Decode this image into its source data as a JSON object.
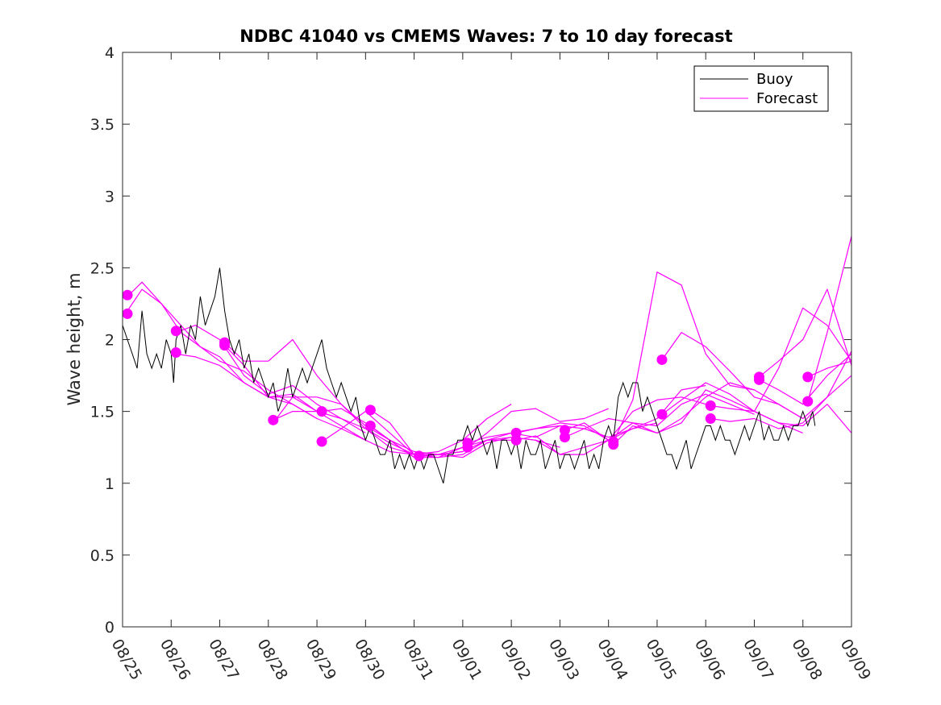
{
  "chart_data": {
    "type": "line",
    "title": "NDBC 41040 vs CMEMS Waves: 7 to 10 day forecast",
    "xlabel": "",
    "ylabel": "Wave height, m",
    "ylim": [
      0,
      4
    ],
    "yticks": [
      0,
      0.5,
      1,
      1.5,
      2,
      2.5,
      3,
      3.5,
      4
    ],
    "ytick_labels": [
      "0",
      "0.5",
      "1",
      "1.5",
      "2",
      "2.5",
      "3",
      "3.5",
      "4"
    ],
    "xlim": [
      0,
      15
    ],
    "xtick_labels": [
      "08/25",
      "08/26",
      "08/27",
      "08/28",
      "08/29",
      "08/30",
      "08/31",
      "09/01",
      "09/02",
      "09/03",
      "09/04",
      "09/05",
      "09/06",
      "09/07",
      "09/08",
      "09/09"
    ],
    "legend": {
      "position": "top-right",
      "entries": [
        "Buoy",
        "Forecast"
      ]
    },
    "colors": {
      "buoy": "#000000",
      "forecast": "#ff00ff"
    },
    "series": [
      {
        "name": "Buoy",
        "x": [
          0,
          0.1,
          0.2,
          0.3,
          0.4,
          0.5,
          0.6,
          0.7,
          0.8,
          0.9,
          1.0,
          1.05,
          1.1,
          1.2,
          1.3,
          1.4,
          1.5,
          1.6,
          1.7,
          1.8,
          1.9,
          2.0,
          2.1,
          2.2,
          2.3,
          2.4,
          2.5,
          2.6,
          2.7,
          2.8,
          2.9,
          3.0,
          3.1,
          3.2,
          3.3,
          3.4,
          3.5,
          3.6,
          3.7,
          3.8,
          3.9,
          4.0,
          4.1,
          4.2,
          4.3,
          4.4,
          4.5,
          4.6,
          4.7,
          4.8,
          4.9,
          5.0,
          5.1,
          5.2,
          5.3,
          5.4,
          5.5,
          5.6,
          5.7,
          5.8,
          5.9,
          6.0,
          6.1,
          6.2,
          6.3,
          6.4,
          6.5,
          6.6,
          6.7,
          6.8,
          6.9,
          7.0,
          7.1,
          7.2,
          7.3,
          7.4,
          7.5,
          7.6,
          7.7,
          7.8,
          7.9,
          8.0,
          8.1,
          8.2,
          8.3,
          8.4,
          8.5,
          8.6,
          8.7,
          8.8,
          8.9,
          9.0,
          9.1,
          9.2,
          9.3,
          9.4,
          9.5,
          9.6,
          9.7,
          9.8,
          9.9,
          10.0,
          10.1,
          10.2,
          10.3,
          10.4,
          10.5,
          10.6,
          10.7,
          10.8,
          10.9,
          11.0,
          11.1,
          11.2,
          11.3,
          11.4,
          11.5,
          11.6,
          11.7,
          11.8,
          11.9,
          12.0,
          12.1,
          12.2,
          12.3,
          12.4,
          12.5,
          12.6,
          12.7,
          12.8,
          12.9,
          13.0,
          13.1,
          13.2,
          13.3,
          13.4,
          13.5,
          13.6,
          13.7,
          13.8,
          13.9,
          14.0,
          14.1,
          14.2,
          14.25
        ],
        "values": [
          2.1,
          2.0,
          1.9,
          1.8,
          2.2,
          1.9,
          1.8,
          1.9,
          1.8,
          2.0,
          1.9,
          1.7,
          2.0,
          2.1,
          1.9,
          2.1,
          2.0,
          2.3,
          2.1,
          2.2,
          2.3,
          2.5,
          2.2,
          2.0,
          1.9,
          2.0,
          1.8,
          1.9,
          1.7,
          1.8,
          1.7,
          1.6,
          1.7,
          1.5,
          1.6,
          1.8,
          1.6,
          1.7,
          1.8,
          1.7,
          1.8,
          1.9,
          2.0,
          1.8,
          1.7,
          1.6,
          1.7,
          1.6,
          1.5,
          1.6,
          1.4,
          1.3,
          1.4,
          1.3,
          1.2,
          1.2,
          1.3,
          1.1,
          1.2,
          1.1,
          1.2,
          1.1,
          1.2,
          1.1,
          1.2,
          1.2,
          1.1,
          1.0,
          1.2,
          1.2,
          1.3,
          1.3,
          1.4,
          1.3,
          1.4,
          1.3,
          1.2,
          1.3,
          1.1,
          1.3,
          1.3,
          1.2,
          1.3,
          1.1,
          1.3,
          1.2,
          1.2,
          1.3,
          1.1,
          1.2,
          1.3,
          1.1,
          1.2,
          1.2,
          1.1,
          1.2,
          1.3,
          1.1,
          1.2,
          1.1,
          1.3,
          1.4,
          1.3,
          1.6,
          1.7,
          1.6,
          1.7,
          1.7,
          1.5,
          1.6,
          1.5,
          1.4,
          1.3,
          1.2,
          1.2,
          1.1,
          1.2,
          1.3,
          1.1,
          1.2,
          1.3,
          1.4,
          1.4,
          1.3,
          1.4,
          1.3,
          1.3,
          1.2,
          1.3,
          1.4,
          1.3,
          1.4,
          1.5,
          1.3,
          1.4,
          1.3,
          1.3,
          1.4,
          1.3,
          1.4,
          1.4,
          1.5,
          1.4,
          1.5,
          1.4
        ]
      },
      {
        "name": "Forecast",
        "x": [
          0.1,
          0.4,
          0.8,
          1.2,
          1.6,
          2.0,
          2.5,
          3.0,
          3.5,
          4.0
        ],
        "values": [
          2.2,
          2.35,
          2.25,
          2.05,
          1.95,
          1.85,
          1.78,
          1.65,
          1.55,
          1.45
        ]
      },
      {
        "name": "Forecast",
        "x": [
          0.1,
          0.4,
          0.8,
          1.2,
          1.6,
          2.0,
          2.5,
          3.0,
          3.5,
          4.0
        ],
        "values": [
          2.3,
          2.4,
          2.25,
          2.1,
          1.95,
          1.88,
          1.7,
          1.6,
          1.6,
          1.5
        ]
      },
      {
        "name": "Forecast",
        "x": [
          1.1,
          1.5,
          2.0,
          2.5,
          3.0,
          3.5,
          4.0,
          4.5,
          5.0
        ],
        "values": [
          1.9,
          1.88,
          1.82,
          1.7,
          1.6,
          1.55,
          1.45,
          1.38,
          1.3
        ]
      },
      {
        "name": "Forecast",
        "x": [
          1.1,
          1.5,
          2.0,
          2.5,
          3.0,
          3.5,
          4.0,
          4.5,
          5.0
        ],
        "values": [
          2.05,
          2.1,
          2.0,
          1.75,
          1.62,
          1.68,
          1.55,
          1.45,
          1.35
        ]
      },
      {
        "name": "Forecast",
        "x": [
          2.1,
          2.5,
          3.0,
          3.5,
          4.0,
          4.5,
          5.0,
          5.5,
          6.0
        ],
        "values": [
          1.98,
          1.85,
          1.85,
          2.0,
          1.75,
          1.55,
          1.38,
          1.25,
          1.2
        ]
      },
      {
        "name": "Forecast",
        "x": [
          2.1,
          2.5,
          3.0,
          3.5,
          4.0,
          4.5,
          5.0,
          5.5,
          6.0
        ],
        "values": [
          1.96,
          1.82,
          1.6,
          1.62,
          1.5,
          1.4,
          1.3,
          1.22,
          1.2
        ]
      },
      {
        "name": "Forecast",
        "x": [
          3.1,
          3.5,
          4.0,
          4.5,
          5.0,
          5.5,
          6.0,
          6.5,
          7.0
        ],
        "values": [
          1.44,
          1.5,
          1.5,
          1.45,
          1.38,
          1.28,
          1.2,
          1.2,
          1.22
        ]
      },
      {
        "name": "Forecast",
        "x": [
          3.1,
          3.5,
          4.0,
          4.5,
          5.0,
          5.5,
          6.0,
          6.5,
          7.0
        ],
        "values": [
          1.42,
          1.6,
          1.6,
          1.55,
          1.4,
          1.3,
          1.18,
          1.18,
          1.25
        ]
      },
      {
        "name": "Forecast",
        "x": [
          4.1,
          4.5,
          5.0,
          5.5,
          6.0,
          6.5,
          7.0,
          7.5,
          8.0
        ],
        "values": [
          1.29,
          1.38,
          1.5,
          1.35,
          1.2,
          1.22,
          1.3,
          1.45,
          1.55
        ]
      },
      {
        "name": "Forecast",
        "x": [
          4.1,
          4.5,
          5.0,
          5.5,
          6.0,
          6.5,
          7.0,
          7.5,
          8.0
        ],
        "values": [
          1.5,
          1.52,
          1.42,
          1.3,
          1.18,
          1.2,
          1.25,
          1.3,
          1.3
        ]
      },
      {
        "name": "Forecast",
        "x": [
          5.1,
          5.5,
          6.0,
          6.5,
          7.0,
          7.5,
          8.0,
          8.5,
          9.0
        ],
        "values": [
          1.51,
          1.42,
          1.2,
          1.18,
          1.2,
          1.3,
          1.35,
          1.38,
          1.4
        ]
      },
      {
        "name": "Forecast",
        "x": [
          5.1,
          5.5,
          6.0,
          6.5,
          7.0,
          7.5,
          8.0,
          8.5,
          9.0
        ],
        "values": [
          1.4,
          1.3,
          1.22,
          1.2,
          1.22,
          1.3,
          1.32,
          1.3,
          1.25
        ]
      },
      {
        "name": "Forecast",
        "x": [
          6.1,
          6.5,
          7.0,
          7.5,
          8.0,
          8.5,
          9.0,
          9.5,
          10.0
        ],
        "values": [
          1.19,
          1.2,
          1.18,
          1.28,
          1.32,
          1.3,
          1.2,
          1.25,
          1.3
        ]
      },
      {
        "name": "Forecast",
        "x": [
          7.1,
          7.5,
          8.0,
          8.5,
          9.0,
          9.5,
          10.0,
          10.5,
          11.0
        ],
        "values": [
          1.28,
          1.32,
          1.35,
          1.32,
          1.4,
          1.38,
          1.32,
          1.38,
          1.42
        ]
      },
      {
        "name": "Forecast",
        "x": [
          7.1,
          7.5,
          8.0,
          8.5,
          9.0,
          9.5,
          10.0
        ],
        "values": [
          1.25,
          1.35,
          1.5,
          1.52,
          1.43,
          1.45,
          1.52
        ]
      },
      {
        "name": "Forecast",
        "x": [
          8.1,
          8.5,
          9.0,
          9.5,
          10.0,
          10.5,
          11.0,
          11.5,
          12.0
        ],
        "values": [
          1.35,
          1.38,
          1.42,
          1.4,
          1.3,
          1.5,
          1.58,
          1.6,
          1.55
        ]
      },
      {
        "name": "Forecast",
        "x": [
          8.1,
          8.5,
          9.0,
          9.5,
          10.0,
          10.5,
          11.0,
          11.5,
          12.0
        ],
        "values": [
          1.3,
          1.33,
          1.2,
          1.2,
          1.3,
          1.38,
          1.45,
          1.65,
          1.68
        ]
      },
      {
        "name": "Forecast",
        "x": [
          9.1,
          9.5,
          10.0,
          10.5,
          11.0,
          11.5,
          12.0,
          12.5,
          13.0
        ],
        "values": [
          1.37,
          1.42,
          1.3,
          1.42,
          1.4,
          1.55,
          1.62,
          1.55,
          1.48
        ]
      },
      {
        "name": "Forecast",
        "x": [
          9.1,
          9.5,
          10.0,
          10.5,
          11.0,
          11.5,
          12.0,
          12.5,
          13.0
        ],
        "values": [
          1.32,
          1.38,
          1.45,
          1.42,
          1.35,
          1.45,
          1.6,
          1.7,
          1.65
        ]
      },
      {
        "name": "Forecast",
        "x": [
          10.1,
          10.5,
          11.0,
          11.5,
          12.0,
          12.5,
          13.0,
          13.5,
          14.0
        ],
        "values": [
          1.29,
          1.58,
          2.47,
          2.38,
          1.9,
          1.68,
          1.65,
          1.55,
          1.45
        ]
      },
      {
        "name": "Forecast",
        "x": [
          10.1,
          10.5,
          11.0,
          11.5,
          12.0,
          12.5,
          13.0,
          13.5,
          14.0
        ],
        "values": [
          1.27,
          1.4,
          1.35,
          1.42,
          1.65,
          1.58,
          1.5,
          1.42,
          1.35
        ]
      },
      {
        "name": "Forecast",
        "x": [
          11.1,
          11.5,
          12.0,
          12.5,
          13.0,
          13.5,
          14.0,
          14.5,
          15.0
        ],
        "values": [
          1.86,
          2.05,
          1.95,
          1.78,
          1.6,
          1.55,
          1.45,
          1.6,
          1.92
        ]
      },
      {
        "name": "Forecast",
        "x": [
          11.1,
          11.5,
          12.0,
          12.5,
          13.0,
          13.5,
          14.0,
          14.5,
          15.0
        ],
        "values": [
          1.48,
          1.58,
          1.7,
          1.62,
          1.5,
          1.42,
          1.4,
          1.55,
          1.35
        ]
      },
      {
        "name": "Forecast",
        "x": [
          12.1,
          12.5,
          13.0,
          13.5,
          14.0,
          14.5,
          15.0
        ],
        "values": [
          1.54,
          1.52,
          1.5,
          1.8,
          2.22,
          2.1,
          1.85
        ]
      },
      {
        "name": "Forecast",
        "x": [
          12.1,
          12.5,
          13.0,
          13.5,
          14.0,
          14.5,
          15.0
        ],
        "values": [
          1.45,
          1.43,
          1.45,
          1.38,
          1.42,
          1.6,
          1.75
        ]
      },
      {
        "name": "Forecast",
        "x": [
          13.1,
          13.5,
          14.0,
          14.5,
          15.0
        ],
        "values": [
          1.74,
          1.85,
          2.0,
          2.35,
          1.82
        ]
      },
      {
        "name": "Forecast",
        "x": [
          13.1,
          13.5,
          14.0,
          14.5,
          15.0
        ],
        "values": [
          1.72,
          1.65,
          1.55,
          1.75,
          1.9
        ]
      },
      {
        "name": "Forecast",
        "x": [
          14.1,
          14.5,
          15.0
        ],
        "values": [
          1.74,
          1.8,
          1.85
        ]
      },
      {
        "name": "Forecast",
        "x": [
          14.1,
          14.5,
          15.0
        ],
        "values": [
          1.57,
          2.05,
          2.72
        ]
      }
    ],
    "markers": {
      "x": [
        0.1,
        0.1,
        1.1,
        1.1,
        2.1,
        2.1,
        3.1,
        4.1,
        4.1,
        5.1,
        5.1,
        6.1,
        7.1,
        7.1,
        8.1,
        8.1,
        9.1,
        9.1,
        10.1,
        10.1,
        11.1,
        11.1,
        12.1,
        12.1,
        13.1,
        13.1,
        14.1,
        14.1
      ],
      "values": [
        2.31,
        2.18,
        2.06,
        1.91,
        1.98,
        1.96,
        1.44,
        1.5,
        1.29,
        1.51,
        1.4,
        1.19,
        1.28,
        1.25,
        1.35,
        1.3,
        1.37,
        1.32,
        1.29,
        1.27,
        1.86,
        1.48,
        1.54,
        1.45,
        1.74,
        1.72,
        1.74,
        1.57
      ]
    }
  }
}
